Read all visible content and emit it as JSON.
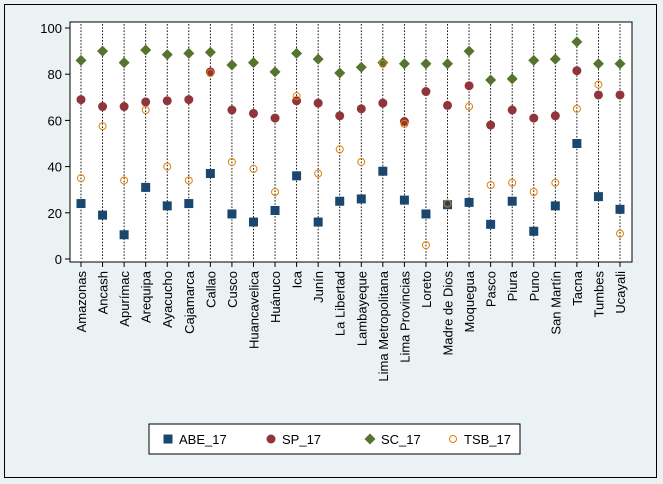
{
  "chart_data": {
    "type": "scatter",
    "categories": [
      "Amazonas",
      "Ancash",
      "Apurímac",
      "Arequipa",
      "Ayacucho",
      "Cajamarca",
      "Callao",
      "Cusco",
      "Huancavelica",
      "Huánuco",
      "Ica",
      "Junín",
      "La Libertad",
      "Lambayeque",
      "Lima Metropolitana",
      "Lima Provincias",
      "Loreto",
      "Madre de Dios",
      "Moquegua",
      "Pasco",
      "Piura",
      "Puno",
      "San Martín",
      "Tacna",
      "Tumbes",
      "Ucayali"
    ],
    "series": [
      {
        "name": "ABE_17",
        "marker": "square",
        "color": "#1a476f",
        "values": [
          24,
          19,
          10.5,
          31,
          23,
          24,
          37,
          19.5,
          16,
          21,
          36,
          16,
          25,
          26,
          38,
          25.5,
          19.5,
          23.5,
          24.5,
          15,
          25,
          12,
          23,
          50,
          27,
          21.5
        ]
      },
      {
        "name": "SP_17",
        "marker": "circle",
        "color": "#90353b",
        "values": [
          69,
          66,
          66,
          68,
          68.5,
          69,
          81,
          64.5,
          63,
          61,
          68.5,
          67.5,
          62,
          65,
          67.5,
          59.5,
          72.5,
          66.5,
          75,
          58,
          64.5,
          61,
          62,
          81.5,
          71,
          71
        ]
      },
      {
        "name": "SC_17",
        "marker": "diamond",
        "color": "#55752f",
        "values": [
          86,
          90,
          85,
          90.5,
          88.5,
          89,
          89.5,
          84,
          85,
          81,
          89,
          86.5,
          80.5,
          83,
          85,
          84.5,
          84.5,
          84.5,
          90,
          77.5,
          78,
          86,
          86.5,
          94,
          84.5,
          84.5
        ]
      },
      {
        "name": "TSB_17",
        "marker": "hollow-circle",
        "color": "#e37e00",
        "values": [
          35,
          57.5,
          34,
          64.5,
          40,
          34,
          80.5,
          42,
          39,
          29,
          70.5,
          37,
          47.5,
          42,
          84.5,
          58.5,
          6,
          24,
          66,
          32,
          33,
          29,
          33,
          65,
          75.5,
          11
        ]
      }
    ],
    "ylim": [
      0,
      100
    ],
    "yticks": [
      "0",
      "20",
      "40",
      "60",
      "80",
      "100"
    ],
    "grid": "vertical dotted lines at each category",
    "legend": "bottom"
  }
}
